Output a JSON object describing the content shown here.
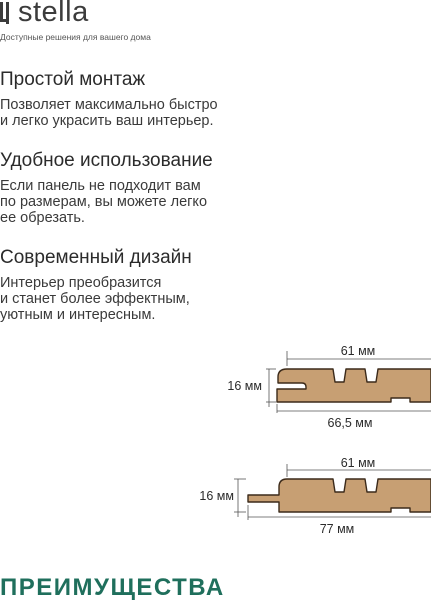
{
  "brand": {
    "name": "stella",
    "tagline": "Доступные решения для вашего дома",
    "accent_color": "#1f6f5c"
  },
  "features": [
    {
      "title": "Простой монтаж",
      "lines": [
        "Позволяет максимально быстро",
        "и легко украсить ваш интерьер."
      ]
    },
    {
      "title": "Удобное использование",
      "lines": [
        "Если панель не подходит вам",
        "по размерам, вы можете легко",
        "ее обрезать."
      ]
    },
    {
      "title": "Современный дизайн",
      "lines": [
        "Интерьер преобразится",
        "и станет более эффектным,",
        "уютным и интересным."
      ]
    }
  ],
  "profiles": [
    {
      "top_width": "61 мм",
      "height": "16 мм",
      "bottom_width": "66,5 мм"
    },
    {
      "top_width": "61 мм",
      "height": "16 мм",
      "bottom_width": "77 мм"
    }
  ],
  "section_title": "ПРЕИМУЩЕСТВА",
  "colors": {
    "panel_fill": "#c79f73",
    "panel_stroke": "#3b2a1a"
  }
}
